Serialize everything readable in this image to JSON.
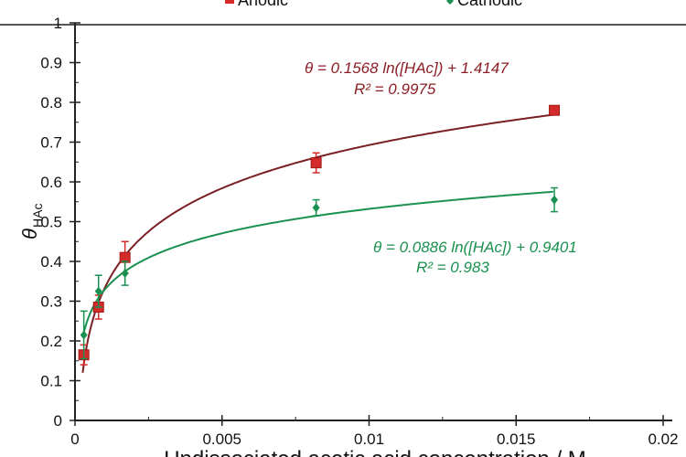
{
  "chart_data": {
    "type": "scatter",
    "title": "",
    "xlabel": "Undissociated acetic acid concentration / M",
    "ylabel": "θ",
    "ylabel_sub": "HAc",
    "xlim": [
      0,
      0.02
    ],
    "ylim": [
      0,
      1
    ],
    "xticks": [
      "0",
      "0.005",
      "0.01",
      "0.015",
      "0.02"
    ],
    "xtick_values": [
      0,
      0.005,
      0.01,
      0.015,
      0.02
    ],
    "yticks": [
      "0",
      "0.1",
      "0.2",
      "0.3",
      "0.4",
      "0.5",
      "0.6",
      "0.7",
      "0.8",
      "0.9",
      "1"
    ],
    "ytick_values": [
      0,
      0.1,
      0.2,
      0.3,
      0.4,
      0.5,
      0.6,
      0.7,
      0.8,
      0.9,
      1
    ],
    "grid": false,
    "legend_position": "top",
    "series": [
      {
        "name": "Anodic",
        "color": "#d42a2a",
        "line_color": "#7a1f24",
        "marker": "square",
        "x": [
          0.0003,
          0.0008,
          0.0017,
          0.0082,
          0.0163
        ],
        "y": [
          0.165,
          0.285,
          0.41,
          0.648,
          0.78
        ],
        "err": [
          0.025,
          0.03,
          0.04,
          0.025,
          0.008
        ],
        "fit": {
          "a": 0.1568,
          "b": 1.4147
        },
        "equation": "θ = 0.1568 ln([HAc]) + 1.4147",
        "r2": "R² = 0.9975"
      },
      {
        "name": "Cathodic",
        "color": "#1a9150",
        "line_color": "#1a9150",
        "marker": "diamond",
        "x": [
          0.0003,
          0.0008,
          0.0017,
          0.0082,
          0.0163
        ],
        "y": [
          0.215,
          0.325,
          0.37,
          0.535,
          0.555
        ],
        "err": [
          0.06,
          0.04,
          0.03,
          0.02,
          0.03
        ],
        "fit": {
          "a": 0.0886,
          "b": 0.9401
        },
        "equation": "θ = 0.0886 ln([HAc]) + 0.9401",
        "r2": "R² = 0.983"
      }
    ]
  }
}
